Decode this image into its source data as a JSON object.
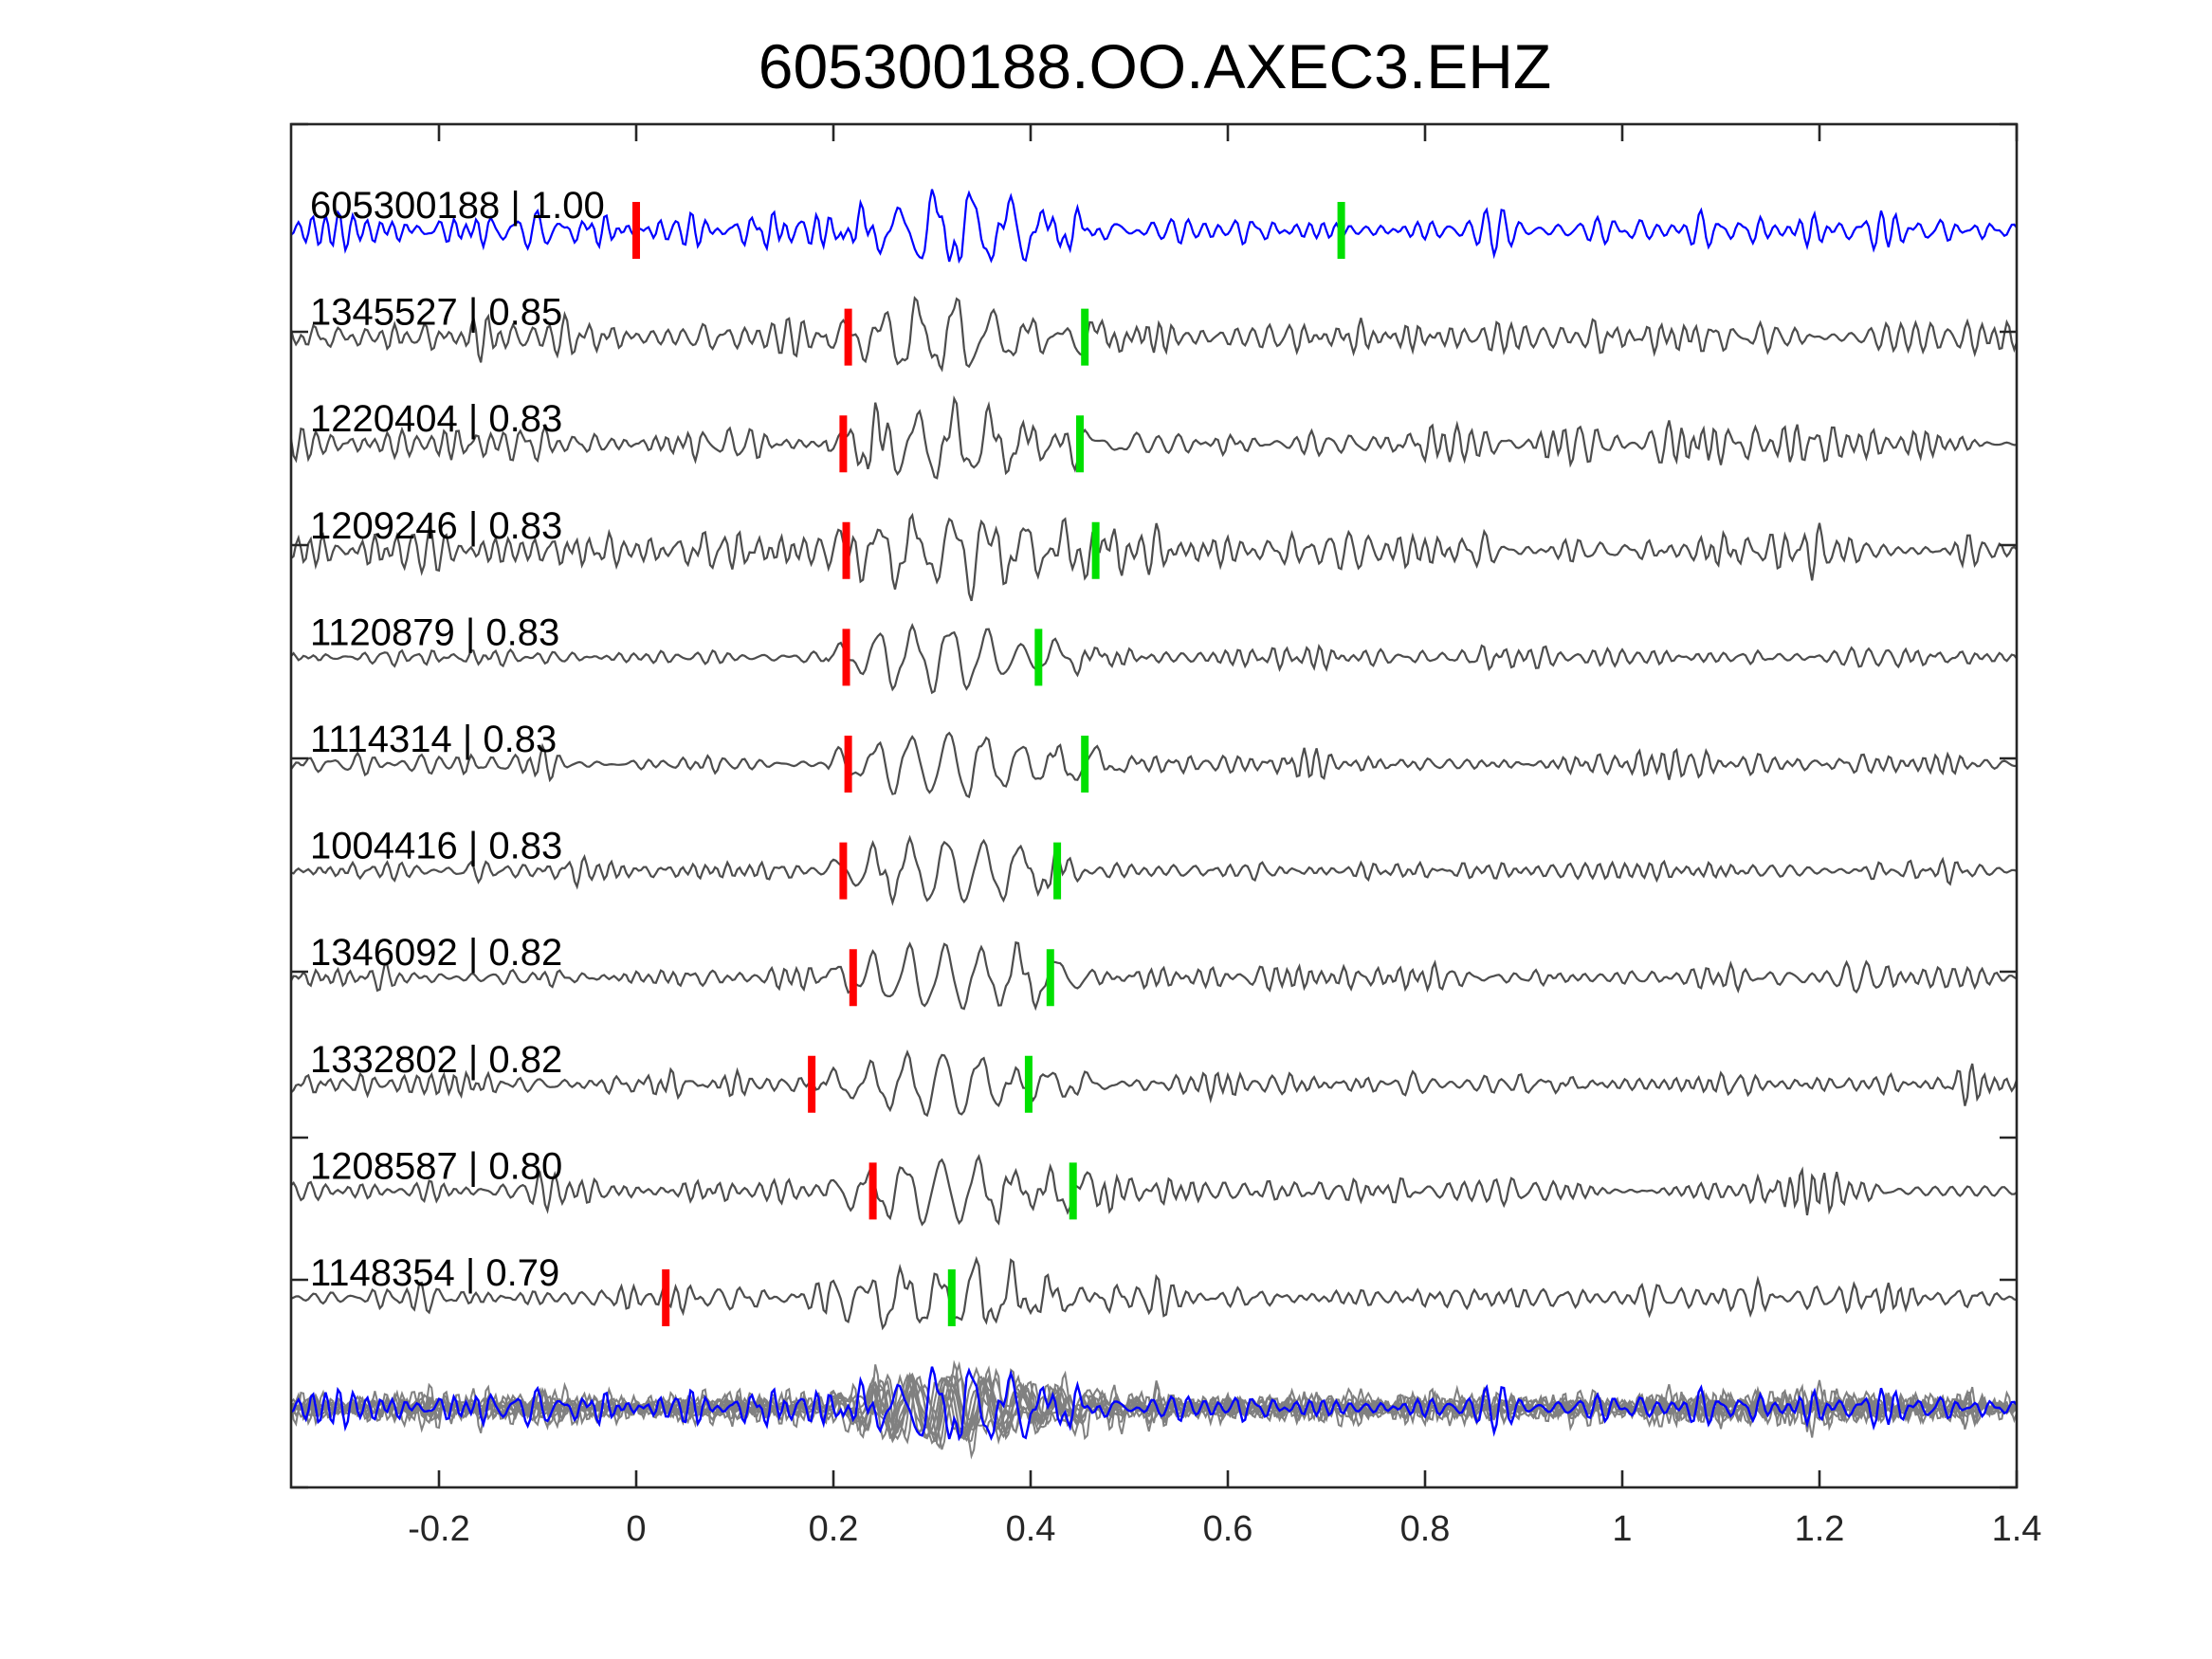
{
  "chart_data": {
    "type": "line",
    "title": "605300188.OO.AXEC3.EHZ",
    "xlabel": "",
    "ylabel": "",
    "xlim": [
      -0.35,
      1.4
    ],
    "xticks": [
      -0.2,
      0,
      0.2,
      0.4,
      0.6,
      0.8,
      1,
      1.2,
      1.4
    ],
    "xtick_labels": [
      "-0.2",
      "0",
      "0.2",
      "0.4",
      "0.6",
      "0.8",
      "1",
      "1.2",
      "1.4"
    ],
    "grid": false,
    "colors": {
      "template": "#0000ff",
      "match": "#4d4d4d",
      "stack": "#808080",
      "p_pick": "#ff0000",
      "s_pick": "#00e000",
      "axes": "#262626"
    },
    "series": [
      {
        "name": "605300188",
        "cc": "1.00",
        "label": "605300188 | 1.00",
        "p_pick": 0.0,
        "s_pick": 0.715,
        "template": true
      },
      {
        "name": "1345527",
        "cc": "0.85",
        "label": "1345527 | 0.85",
        "p_pick": 0.215,
        "s_pick": 0.455
      },
      {
        "name": "1220404",
        "cc": "0.83",
        "label": "1220404 | 0.83",
        "p_pick": 0.21,
        "s_pick": 0.45
      },
      {
        "name": "1209246",
        "cc": "0.83",
        "label": "1209246 | 0.83",
        "p_pick": 0.213,
        "s_pick": 0.466
      },
      {
        "name": "1120879",
        "cc": "0.83",
        "label": "1120879 | 0.83",
        "p_pick": 0.213,
        "s_pick": 0.408
      },
      {
        "name": "1114314",
        "cc": "0.83",
        "label": "1114314 | 0.83",
        "p_pick": 0.215,
        "s_pick": 0.455
      },
      {
        "name": "1004416",
        "cc": "0.83",
        "label": "1004416 | 0.83",
        "p_pick": 0.21,
        "s_pick": 0.427
      },
      {
        "name": "1346092",
        "cc": "0.82",
        "label": "1346092 | 0.82",
        "p_pick": 0.22,
        "s_pick": 0.42
      },
      {
        "name": "1332802",
        "cc": "0.82",
        "label": "1332802 | 0.82",
        "p_pick": 0.178,
        "s_pick": 0.398
      },
      {
        "name": "1208587",
        "cc": "0.80",
        "label": "1208587 | 0.80",
        "p_pick": 0.24,
        "s_pick": 0.443
      },
      {
        "name": "1148354",
        "cc": "0.79",
        "label": "1148354 | 0.79",
        "p_pick": 0.03,
        "s_pick": 0.32
      }
    ]
  }
}
